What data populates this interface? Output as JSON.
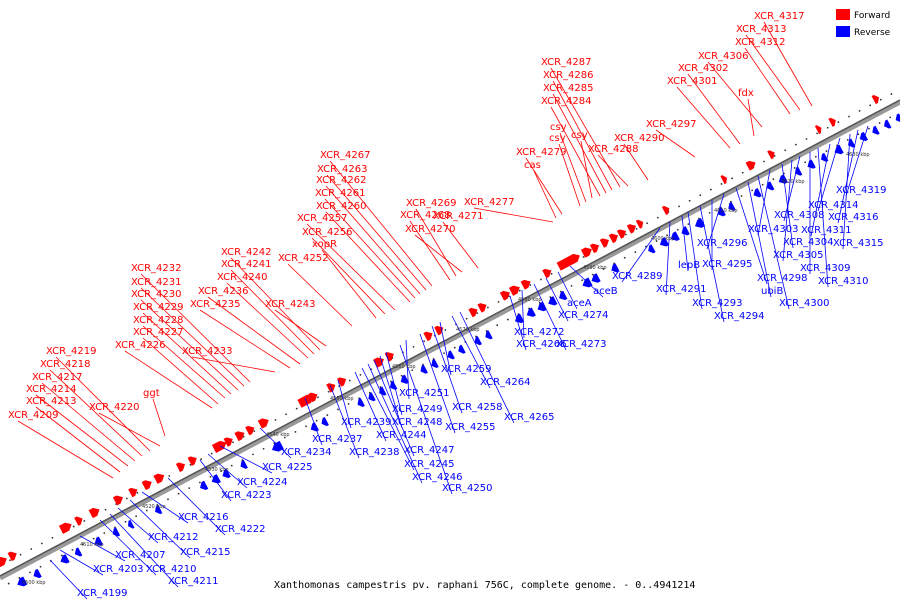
{
  "caption": "Xanthomonas campestris pv. raphani 756C, complete genome. - 0..4941214",
  "legend": {
    "forward_label": "Forward",
    "reverse_label": "Reverse",
    "forward_color": "#ff0000",
    "reverse_color": "#0000ff"
  },
  "scale_ticks": [
    "4500 kbp",
    "4510 kbp",
    "4520 kbp",
    "4530 kbp",
    "4540 kbp",
    "4550 kbp",
    "4560 kbp",
    "4570 kbp",
    "4580 kbp",
    "4590 kbp",
    "4600 kbp",
    "4610 kbp",
    "4620 kbp",
    "4630 kbp"
  ],
  "forward_labels": [
    "XCR_4209",
    "XCR_4213",
    "XCR_4214",
    "XCR_4217",
    "XCR_4218",
    "XCR_4219",
    "XCR_4220",
    "ggt",
    "XCR_4226",
    "XCR_4227",
    "XCR_4228",
    "XCR_4229",
    "XCR_4230",
    "XCR_4231",
    "XCR_4232",
    "XCR_4233",
    "XCR_4235",
    "XCR_4236",
    "XCR_4240",
    "XCR_4241",
    "XCR_4242",
    "XCR_4243",
    "XCR_4252",
    "xopR",
    "XCR_4256",
    "XCR_4257",
    "XCR_4260",
    "XCR_4261",
    "XCR_4262",
    "XCR_4263",
    "XCR_4267",
    "XCR_4268",
    "XCR_4269",
    "XCR_4270",
    "XCR_4271",
    "XCR_4277",
    "cas",
    "XCR_4279",
    "csy",
    "csy",
    "csy",
    "XCR_4284",
    "XCR_4285",
    "XCR_4286",
    "XCR_4287",
    "XCR_4288",
    "XCR_4290",
    "XCR_4297",
    "XCR_4301",
    "XCR_4302",
    "fdx",
    "XCR_4306",
    "XCR_4312",
    "XCR_4313",
    "XCR_4317"
  ],
  "reverse_labels": [
    "XCR_4199",
    "XCR_4203",
    "XCR_4207",
    "XCR_4210",
    "XCR_4211",
    "XCR_4212",
    "XCR_4215",
    "XCR_4216",
    "XCR_4222",
    "XCR_4223",
    "XCR_4224",
    "XCR_4225",
    "XCR_4234",
    "XCR_4237",
    "XCR_4238",
    "XCR_4239",
    "XCR_4244",
    "XCR_4245",
    "XCR_4246",
    "XCR_4247",
    "XCR_4248",
    "XCR_4249",
    "XCR_4250",
    "XCR_4251",
    "XCR_4255",
    "XCR_4258",
    "XCR_4259",
    "XCR_4264",
    "XCR_4265",
    "XCR_4266",
    "XCR_4272",
    "XCR_4273",
    "XCR_4274",
    "aceA",
    "aceB",
    "XCR_4289",
    "XCR_4291",
    "lepB",
    "XCR_4293",
    "XCR_4294",
    "XCR_4295",
    "XCR_4296",
    "XCR_4298",
    "ubiB",
    "XCR_4300",
    "XCR_4303",
    "XCR_4304",
    "XCR_4305",
    "XCR_4308",
    "XCR_4309",
    "XCR_4310",
    "XCR_4311",
    "XCR_4314",
    "XCR_4315",
    "XCR_4316",
    "XCR_4319"
  ]
}
